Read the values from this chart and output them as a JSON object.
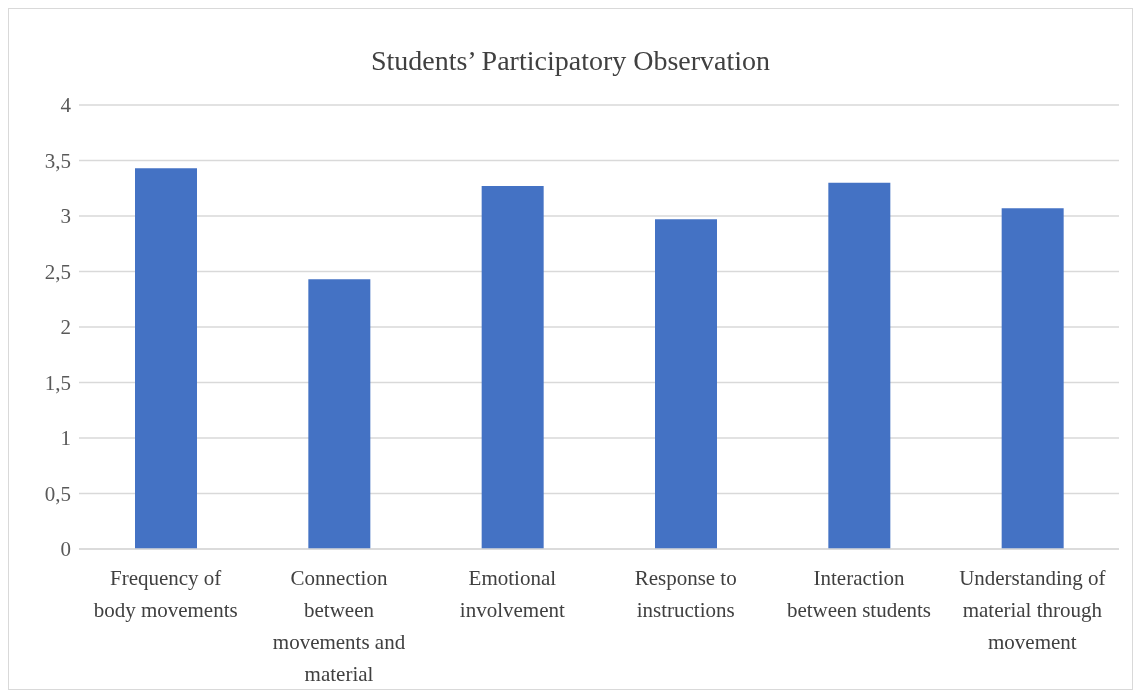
{
  "chart_data": {
    "type": "bar",
    "title": "Students’ Participatory Observation",
    "categories": [
      "Frequency of body movements",
      "Connection between movements and material",
      "Emotional involvement",
      "Response to instructions",
      "Interaction between students",
      "Understanding of material through movement"
    ],
    "values": [
      3.43,
      2.43,
      3.27,
      2.97,
      3.3,
      3.07
    ],
    "color": "#4472c4",
    "ylim": [
      0,
      4
    ],
    "yticks": [
      0,
      {
        "value": 0.5,
        "label": "0,5"
      },
      1,
      {
        "value": 1.5,
        "label": "1,5"
      },
      2,
      {
        "value": 2.5,
        "label": "2,5"
      },
      3,
      {
        "value": 3.5,
        "label": "3,5"
      },
      4
    ],
    "grid": "y",
    "legend": false
  }
}
